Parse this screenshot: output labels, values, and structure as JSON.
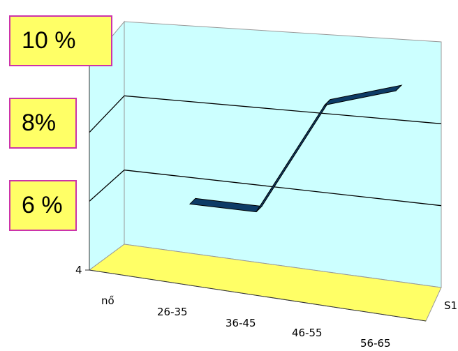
{
  "chart_data": {
    "type": "line",
    "style": "3d-ribbon",
    "categories": [
      "nő",
      "26-35",
      "36-45",
      "46-55",
      "56-65"
    ],
    "series": [
      {
        "name": "S1",
        "values": [
          null,
          5.5,
          5.5,
          8.4,
          8.9
        ]
      }
    ],
    "y_axis_labels": [
      "10 %",
      "8%",
      "6 %",
      "4"
    ],
    "ylim": [
      4,
      10
    ],
    "grid": true,
    "colors": {
      "back_wall": "#ccffff",
      "floor": "#ffff66",
      "ribbon": "#0d3b66",
      "label_box": "#ffff66",
      "label_border": "#cc33aa",
      "gridline": "#000000"
    }
  }
}
